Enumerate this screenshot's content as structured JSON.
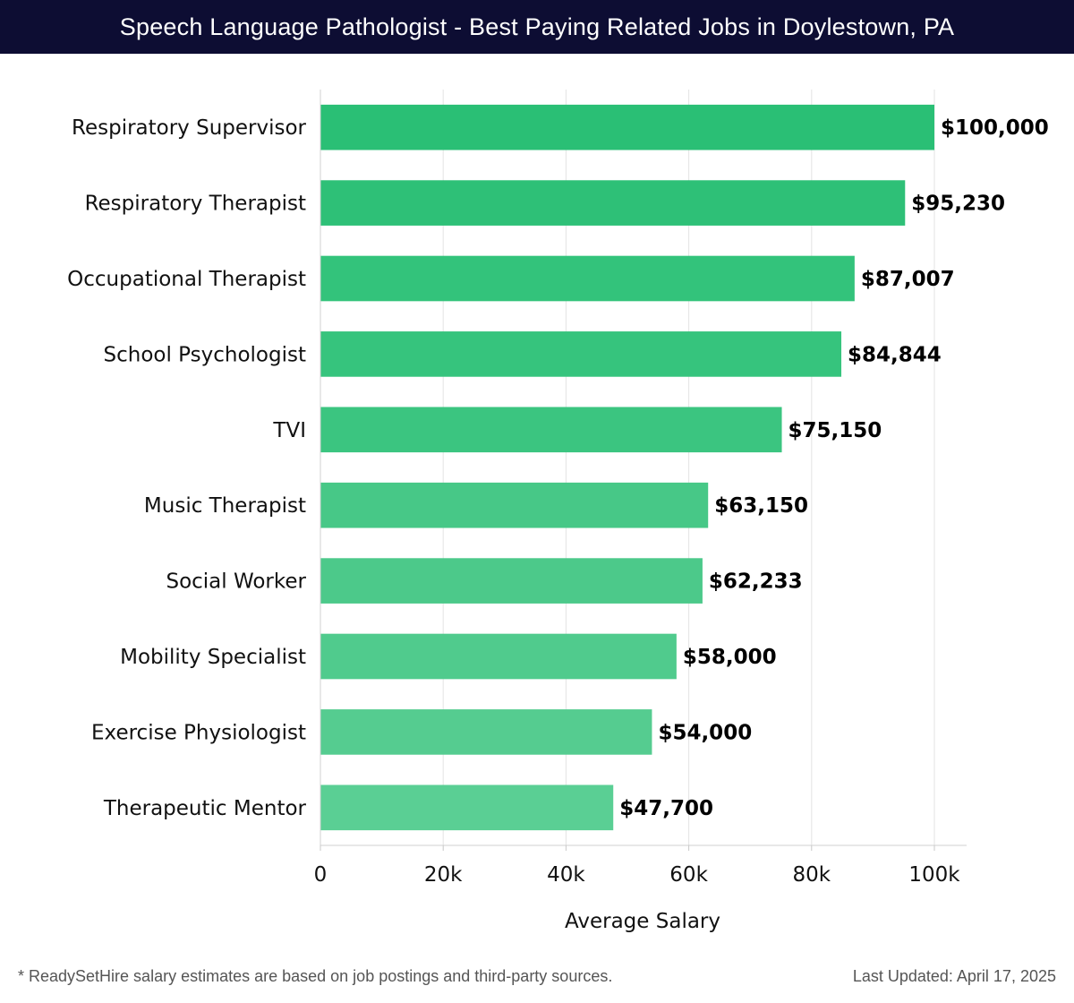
{
  "header": {
    "title": "Speech Language Pathologist - Best Paying Related Jobs in Doylestown, PA"
  },
  "chart_data": {
    "type": "bar",
    "orientation": "horizontal",
    "categories": [
      "Respiratory Supervisor",
      "Respiratory Therapist",
      "Occupational Therapist",
      "School Psychologist",
      "TVI",
      "Music Therapist",
      "Social Worker",
      "Mobility Specialist",
      "Exercise Physiologist",
      "Therapeutic Mentor"
    ],
    "values": [
      100000,
      95230,
      87007,
      84844,
      75150,
      63150,
      62233,
      58000,
      54000,
      47700
    ],
    "value_labels": [
      "$100,000",
      "$95,230",
      "$87,007",
      "$84,844",
      "$75,150",
      "$63,150",
      "$62,233",
      "$58,000",
      "$54,000",
      "$47,700"
    ],
    "xlabel": "Average Salary",
    "ylabel": "",
    "xlim": [
      0,
      105000
    ],
    "x_ticks": [
      0,
      20000,
      40000,
      60000,
      80000,
      100000
    ],
    "x_tick_labels": [
      "0",
      "20k",
      "40k",
      "60k",
      "80k",
      "100k"
    ],
    "grid": "vertical",
    "legend": "none",
    "bar_colors": [
      "#2abf75",
      "#2ec077",
      "#33c37b",
      "#36c47d",
      "#3bc580",
      "#47c887",
      "#4cc98a",
      "#50cb8d",
      "#55cc90",
      "#5acf94"
    ]
  },
  "footer": {
    "note": "* ReadySetHire salary estimates are based on job postings and third-party sources.",
    "updated": "Last Updated: April 17, 2025"
  }
}
